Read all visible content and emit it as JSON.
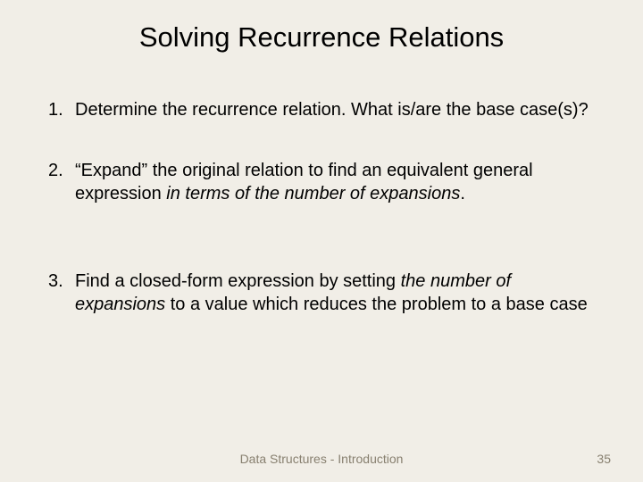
{
  "slide": {
    "title": "Solving Recurrence Relations",
    "background_color": "#f1eee7",
    "title_fontsize": 31,
    "body_fontsize": 20,
    "footer_fontsize": 14,
    "footer_color": "#888070",
    "text_color": "#000000"
  },
  "items": [
    {
      "number": "1.",
      "text_plain": "Determine the recurrence relation.  What is/are the base case(s)?",
      "text_italic": ""
    },
    {
      "number": "2.",
      "text_plain": "“Expand” the original relation to find an equivalent general expression ",
      "text_italic": "in terms of the number of expansions",
      "text_after": "."
    },
    {
      "number": "3.",
      "text_plain": "Find a closed-form expression by setting ",
      "text_italic": "the number of expansions",
      "text_after": " to a value which reduces the problem to a base case"
    }
  ],
  "footer": {
    "center": "Data Structures - Introduction",
    "page_number": "35"
  }
}
